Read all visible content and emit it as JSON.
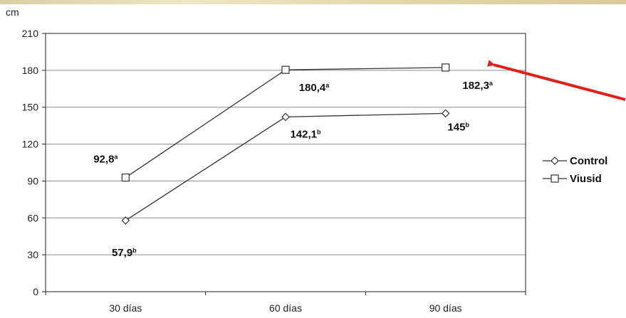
{
  "chart_data": {
    "type": "line",
    "ylabel": "cm",
    "xlabel": "",
    "categories": [
      "30 días",
      "60 días",
      "90 días"
    ],
    "ylim": [
      0,
      210
    ],
    "yticks": [
      "0",
      "30",
      "60",
      "90",
      "120",
      "150",
      "180",
      "210"
    ],
    "grid": true,
    "legend_position": "right",
    "series": [
      {
        "name": "Control",
        "marker": "diamond",
        "values": [
          57.9,
          142.1,
          145
        ],
        "labels": [
          {
            "value": "57,9",
            "sup": "b"
          },
          {
            "value": "142,1",
            "sup": "b"
          },
          {
            "value": "145",
            "sup": "b"
          }
        ]
      },
      {
        "name": "Viusid",
        "marker": "square",
        "values": [
          92.8,
          180.4,
          182.3
        ],
        "labels": [
          {
            "value": "92,8",
            "sup": "a"
          },
          {
            "value": "180,4",
            "sup": "a"
          },
          {
            "value": "182,3",
            "sup": "a"
          }
        ]
      }
    ],
    "colors": {
      "line": "#333333",
      "arrow": "#e0201b",
      "grid": "#8c8c8c",
      "background": "#ffffff"
    }
  }
}
